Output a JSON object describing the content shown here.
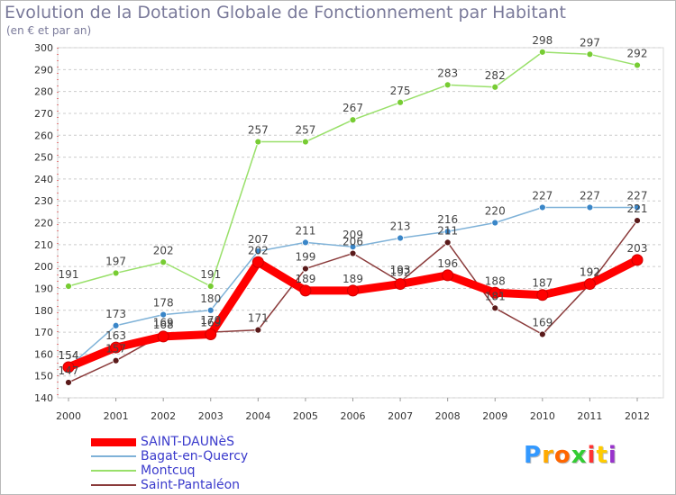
{
  "chart_data": {
    "type": "line",
    "title": "Evolution de la Dotation Globale de Fonctionnement par Habitant",
    "subtitle": "(en € et par an)",
    "x": [
      "2000",
      "2001",
      "2002",
      "2003",
      "2004",
      "2005",
      "2006",
      "2007",
      "2008",
      "2009",
      "2010",
      "2011",
      "2012"
    ],
    "ylim": [
      140,
      300
    ],
    "yticks": [
      140,
      150,
      160,
      170,
      180,
      190,
      200,
      210,
      220,
      230,
      240,
      250,
      260,
      270,
      280,
      290,
      300
    ],
    "grid": "horizontal-dashed",
    "legend_position": "bottom-left",
    "series": [
      {
        "name": "SAINT-DAUNèS",
        "color": "#ff0000",
        "marker": "#ff0000",
        "values": [
          154,
          163,
          168,
          169,
          202,
          189,
          189,
          192,
          196,
          188,
          187,
          192,
          203
        ],
        "labels": [
          "154",
          "163",
          "168",
          "169",
          "202",
          "189",
          "189",
          "192",
          "196",
          "188",
          "187",
          "192",
          "203"
        ]
      },
      {
        "name": "Bagat-en-Quercy",
        "color": "#7fb2d8",
        "marker": "#3a86c8",
        "values": [
          154,
          173,
          178,
          180,
          207,
          211,
          209,
          213,
          216,
          220,
          227,
          227,
          227
        ],
        "labels": [
          "154",
          "173",
          "178",
          "180",
          "207",
          "211",
          "209",
          "213",
          "216",
          "220",
          "227",
          "227",
          "227"
        ]
      },
      {
        "name": "Montcuq",
        "color": "#99e06a",
        "marker": "#77cc33",
        "values": [
          191,
          197,
          202,
          191,
          257,
          257,
          267,
          275,
          283,
          282,
          298,
          297,
          292
        ],
        "labels": [
          "191",
          "197",
          "202",
          "191",
          "257",
          "257",
          "267",
          "275",
          "283",
          "282",
          "298",
          "297",
          "292"
        ]
      },
      {
        "name": "Saint-Pantaléon",
        "color": "#8a3a3a",
        "marker": "#5a1a1a",
        "values": [
          147,
          157,
          169,
          170,
          171,
          199,
          206,
          193,
          211,
          181,
          169,
          192,
          221
        ],
        "labels": [
          "147",
          "157",
          "169",
          "170",
          "171",
          "199",
          "206",
          "193",
          "211",
          "181",
          "169",
          "192",
          "221"
        ]
      }
    ]
  },
  "logo": {
    "letters": [
      "P",
      "r",
      "o",
      "x",
      "i",
      "t",
      "i"
    ],
    "colors": [
      "#3399ff",
      "#ffaa00",
      "#ff6600",
      "#33cc33",
      "#ff3333",
      "#ffcc00",
      "#9933cc"
    ]
  }
}
